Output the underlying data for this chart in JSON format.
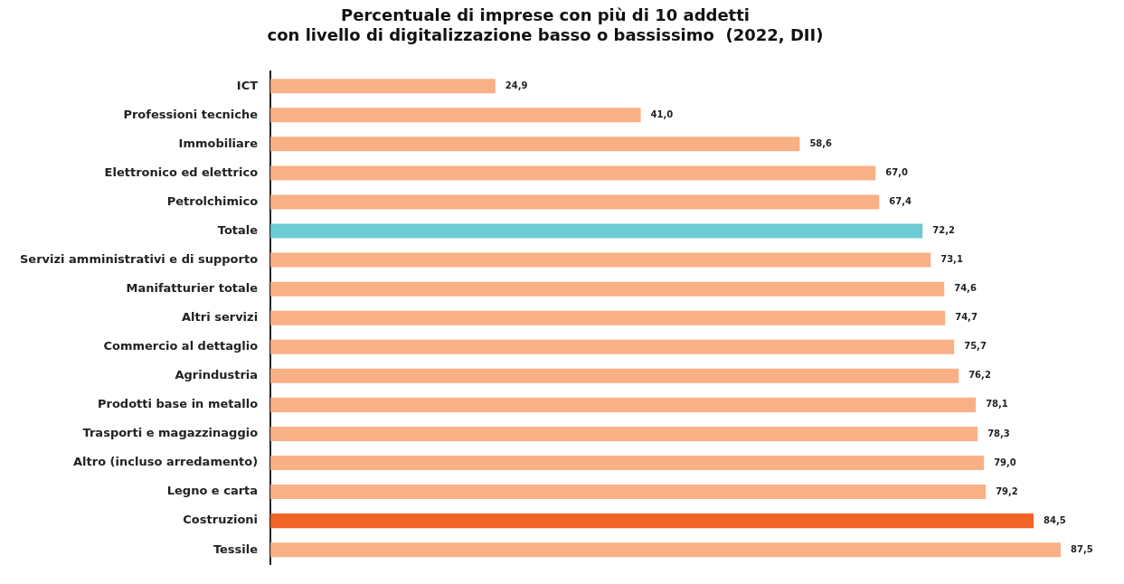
{
  "chart_data": {
    "type": "bar",
    "orientation": "horizontal",
    "title": "Percentuale di imprese con più di 10 addetti\ncon livello di digitalizzazione basso o bassissimo  (2022, DII)",
    "categories": [
      "ICT",
      "Professioni tecniche",
      "Immobiliare",
      "Elettronico ed elettrico",
      "Petrolchimico",
      "Totale",
      "Servizi amministrativi e di supporto",
      "Manifatturier totale",
      "Altri servizi",
      "Commercio al dettaglio",
      "Agrindustria",
      "Prodotti base in metallo",
      "Trasporti e magazzinaggio",
      "Altro (incluso arredamento)",
      "Legno e carta",
      "Costruzioni",
      "Tessile"
    ],
    "values": [
      24.9,
      41.0,
      58.6,
      67.0,
      67.4,
      72.2,
      73.1,
      74.6,
      74.7,
      75.7,
      76.2,
      78.1,
      78.3,
      79.0,
      79.2,
      84.5,
      87.5
    ],
    "value_labels": [
      "24,9",
      "41,0",
      "58,6",
      "67,0",
      "67,4",
      "72,2",
      "73,1",
      "74,6",
      "74,7",
      "75,7",
      "76,2",
      "78,1",
      "78,3",
      "79,0",
      "79,2",
      "84,5",
      "87,5"
    ],
    "colors": [
      "#f9b085",
      "#f9b085",
      "#f9b085",
      "#f9b085",
      "#f9b085",
      "#6ccbd3",
      "#f9b085",
      "#f9b085",
      "#f9b085",
      "#f9b085",
      "#f9b085",
      "#f9b085",
      "#f9b085",
      "#f9b085",
      "#f9b085",
      "#f26326",
      "#f9b085"
    ],
    "legend": false
  }
}
